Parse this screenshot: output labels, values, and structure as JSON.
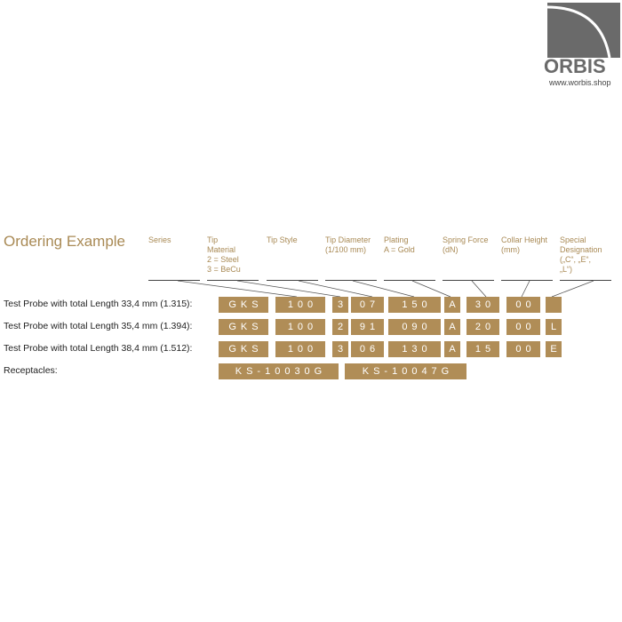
{
  "logo": {
    "brand": "ORBIS",
    "url": "www.worbis.shop"
  },
  "title": "Ordering Example",
  "columns": [
    "Series",
    "Tip\nMaterial\n2 = Steel\n3 = BeCu",
    "Tip Style",
    "Tip Diameter\n(1/100 mm)",
    "Plating\nA = Gold",
    "Spring Force\n(dN)",
    "Collar Height\n(mm)",
    "Special\nDesignation\n(„C“, „E“,\n„L“)"
  ],
  "rows": [
    {
      "label": "Test Probe with total Length 33,4 mm (1.315):",
      "codes": [
        "GKS",
        "100",
        "3",
        "07",
        "150",
        "A",
        "30",
        "00",
        ""
      ]
    },
    {
      "label": "Test Probe with total Length 35,4 mm (1.394):",
      "codes": [
        "GKS",
        "100",
        "2",
        "91",
        "090",
        "A",
        "20",
        "00",
        "L"
      ]
    },
    {
      "label": "Test Probe with total Length 38,4 mm (1.512):",
      "codes": [
        "GKS",
        "100",
        "3",
        "06",
        "130",
        "A",
        "15",
        "00",
        "E"
      ]
    }
  ],
  "receptacles": {
    "label": "Receptacles:",
    "codes": [
      "KS-10030G",
      "KS-10047G"
    ]
  },
  "colors": {
    "accent": "#b08d57",
    "heading": "#a98a55"
  }
}
